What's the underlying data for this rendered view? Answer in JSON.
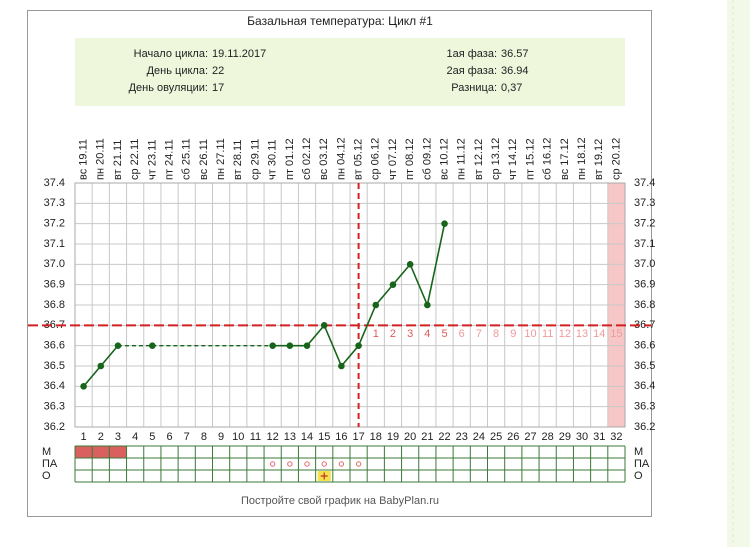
{
  "chart_data": {
    "type": "line",
    "title": "Базальная температура: Цикл #1",
    "info": {
      "left": [
        {
          "label": "Начало цикла:",
          "value": "19.11.2017"
        },
        {
          "label": "День цикла:",
          "value": 22
        },
        {
          "label": "День овуляции:",
          "value": 17
        }
      ],
      "right": [
        {
          "label": "1ая фаза:",
          "value": 36.57
        },
        {
          "label": "2ая фаза:",
          "value": 36.94
        },
        {
          "label": "Разница:",
          "value": "0,37"
        }
      ]
    },
    "x": [
      1,
      2,
      3,
      4,
      5,
      6,
      7,
      8,
      9,
      10,
      11,
      12,
      13,
      14,
      15,
      16,
      17,
      18,
      19,
      20,
      21,
      22,
      23,
      24,
      25,
      26,
      27,
      28,
      29,
      30,
      31,
      32
    ],
    "dates": [
      "вс 19.11",
      "пн 20.11",
      "вт 21.11",
      "ср 22.11",
      "чт 23.11",
      "пт 24.11",
      "сб 25.11",
      "вс 26.11",
      "пн 27.11",
      "вт 28.11",
      "ср 29.11",
      "чт 30.11",
      "пт 01.12",
      "сб 02.12",
      "вс 03.12",
      "пн 04.12",
      "вт 05.12",
      "ср 06.12",
      "чт 07.12",
      "пт 08.12",
      "сб 09.12",
      "вс 10.12",
      "пн 11.12",
      "вт 12.12",
      "ср 13.12",
      "чт 14.12",
      "пт 15.12",
      "сб 16.12",
      "вс 17.12",
      "пн 18.12",
      "вт 19.12",
      "ср 20.12"
    ],
    "values": [
      36.4,
      36.5,
      36.6,
      null,
      36.6,
      null,
      null,
      null,
      null,
      null,
      null,
      36.6,
      36.6,
      36.6,
      36.7,
      36.5,
      36.6,
      36.8,
      36.9,
      37.0,
      36.8,
      37.2,
      null,
      null,
      null,
      null,
      null,
      null,
      null,
      null,
      null,
      null
    ],
    "color": "#17651a",
    "ylim": [
      36.2,
      37.4
    ],
    "yticks": [
      36.2,
      36.3,
      36.4,
      36.5,
      36.6,
      36.7,
      36.8,
      36.9,
      {
        "value": 37.0,
        "label": "37.0"
      },
      37.1,
      37.2,
      37.3,
      37.4
    ],
    "grid": true,
    "coverline": 36.7,
    "line_color": "#d42020",
    "phase_days": [
      1,
      2,
      3,
      4,
      5,
      6,
      7,
      8,
      9,
      10,
      11,
      12,
      13,
      14,
      15
    ],
    "rows": [
      {
        "name": "М",
        "days": [
          1,
          2,
          3
        ],
        "color": "#d9605f"
      },
      {
        "name": "ПА",
        "days": [
          12,
          13,
          14,
          15,
          16,
          17
        ],
        "color": "#e06b6b"
      },
      {
        "name": "О",
        "days": [
          15
        ],
        "color": "#f5e24a"
      }
    ],
    "footer": "Постройте свой график на BabyPlan.ru"
  }
}
